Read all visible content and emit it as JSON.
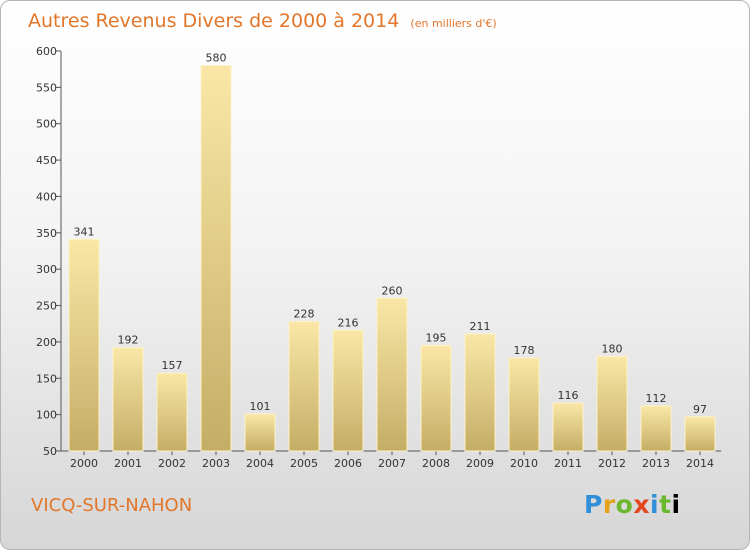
{
  "title": {
    "main": "Autres Revenus Divers de 2000 à 2014",
    "unit": "(en milliers d'€)"
  },
  "commune": "VICQ-SUR-NAHON",
  "logo": {
    "letters": [
      "P",
      "r",
      "o",
      "x",
      "i",
      "t",
      "i"
    ]
  },
  "colors": {
    "title": "#e2762a",
    "bar_light": "#fae7a7",
    "bar_dark": "#c4ad66",
    "bar_outline": "#fff2c4"
  },
  "chart_data": {
    "type": "bar",
    "categories": [
      "2000",
      "2001",
      "2002",
      "2003",
      "2004",
      "2005",
      "2006",
      "2007",
      "2008",
      "2009",
      "2010",
      "2011",
      "2012",
      "2013",
      "2014"
    ],
    "values": [
      341,
      192,
      157,
      580,
      101,
      228,
      216,
      260,
      195,
      211,
      178,
      116,
      180,
      112,
      97
    ],
    "title": "Autres Revenus Divers de 2000 à 2014",
    "ylim": [
      50,
      600
    ],
    "yticks": [
      50,
      100,
      150,
      200,
      250,
      300,
      350,
      400,
      450,
      500,
      550,
      600
    ],
    "xlabel": "",
    "ylabel": "",
    "grid": false,
    "data_labels": true
  }
}
